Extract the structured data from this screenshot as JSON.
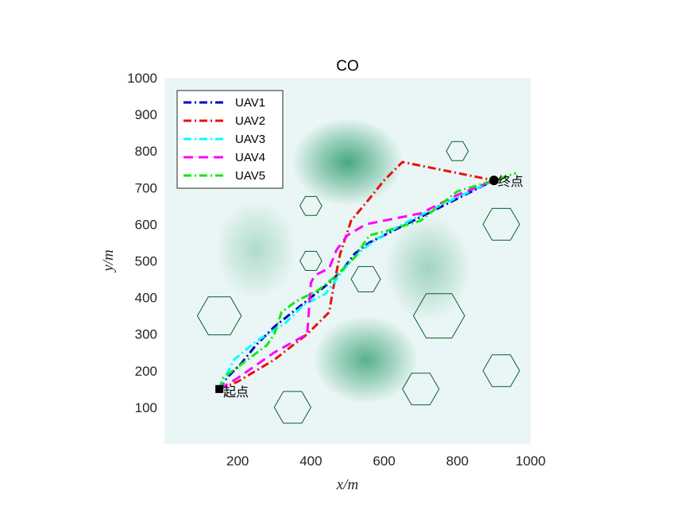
{
  "chart_data": {
    "type": "line",
    "title": "CO",
    "xlabel": "x/m",
    "ylabel": "y/m",
    "xlim": [
      0,
      1000
    ],
    "ylim": [
      0,
      1000
    ],
    "xticks": [
      200,
      400,
      600,
      800,
      1000
    ],
    "yticks": [
      100,
      200,
      300,
      400,
      500,
      600,
      700,
      800,
      900,
      1000
    ],
    "legend_position": "top-left",
    "background": {
      "description_colors": [
        "#eaf6f5",
        "#3fa57a"
      ],
      "threat_fields": [
        {
          "x": 500,
          "y": 770,
          "sx": 95,
          "sy": 75,
          "a": 1.0
        },
        {
          "x": 550,
          "y": 230,
          "sx": 90,
          "sy": 75,
          "a": 0.9
        },
        {
          "x": 250,
          "y": 530,
          "sx": 70,
          "sy": 85,
          "a": 0.35
        },
        {
          "x": 720,
          "y": 480,
          "sx": 75,
          "sy": 90,
          "a": 0.45
        }
      ]
    },
    "obstacles": [
      {
        "cx": 800,
        "cy": 800,
        "r": 30
      },
      {
        "cx": 400,
        "cy": 650,
        "r": 30
      },
      {
        "cx": 920,
        "cy": 600,
        "r": 50
      },
      {
        "cx": 400,
        "cy": 500,
        "r": 30
      },
      {
        "cx": 550,
        "cy": 450,
        "r": 40
      },
      {
        "cx": 150,
        "cy": 350,
        "r": 60
      },
      {
        "cx": 750,
        "cy": 350,
        "r": 70
      },
      {
        "cx": 920,
        "cy": 200,
        "r": 50
      },
      {
        "cx": 700,
        "cy": 150,
        "r": 50
      },
      {
        "cx": 350,
        "cy": 100,
        "r": 50
      }
    ],
    "start": {
      "x": 150,
      "y": 150,
      "label": "起点"
    },
    "end": {
      "x": 900,
      "y": 720,
      "label": "终点"
    },
    "series": [
      {
        "name": "UAV1",
        "color": "#0000cc",
        "dash": "dashdot",
        "x": [
          150,
          170,
          210,
          250,
          300,
          350,
          400,
          450,
          490,
          520,
          560,
          620,
          700,
          800,
          900
        ],
        "y": [
          150,
          180,
          220,
          270,
          320,
          360,
          400,
          440,
          480,
          520,
          550,
          580,
          620,
          670,
          720
        ]
      },
      {
        "name": "UAV2",
        "color": "#e81010",
        "dash": "dashdot",
        "x": [
          150,
          200,
          300,
          390,
          450,
          460,
          480,
          510,
          560,
          600,
          650,
          800,
          900
        ],
        "y": [
          150,
          170,
          230,
          300,
          360,
          420,
          520,
          610,
          670,
          720,
          770,
          740,
          720
        ]
      },
      {
        "name": "UAV3",
        "color": "#00ffff",
        "dash": "dashdot",
        "x": [
          150,
          190,
          250,
          330,
          380,
          440,
          470,
          500,
          540,
          580,
          650,
          750,
          900
        ],
        "y": [
          150,
          230,
          280,
          330,
          380,
          410,
          450,
          490,
          530,
          560,
          600,
          650,
          720
        ]
      },
      {
        "name": "UAV4",
        "color": "#ff00ff",
        "dash": "dash",
        "x": [
          150,
          200,
          300,
          390,
          395,
          400,
          410,
          450,
          470,
          500,
          550,
          600,
          700,
          800,
          900
        ],
        "y": [
          150,
          180,
          250,
          300,
          370,
          440,
          460,
          480,
          530,
          570,
          600,
          610,
          630,
          680,
          720
        ]
      },
      {
        "name": "UAV5",
        "color": "#12e812",
        "dash": "dashdot",
        "x": [
          150,
          160,
          200,
          280,
          300,
          320,
          360,
          420,
          470,
          520,
          560,
          600,
          700,
          800,
          900,
          960
        ],
        "y": [
          150,
          180,
          210,
          270,
          300,
          360,
          390,
          420,
          460,
          510,
          570,
          580,
          610,
          690,
          720,
          740
        ]
      }
    ]
  }
}
